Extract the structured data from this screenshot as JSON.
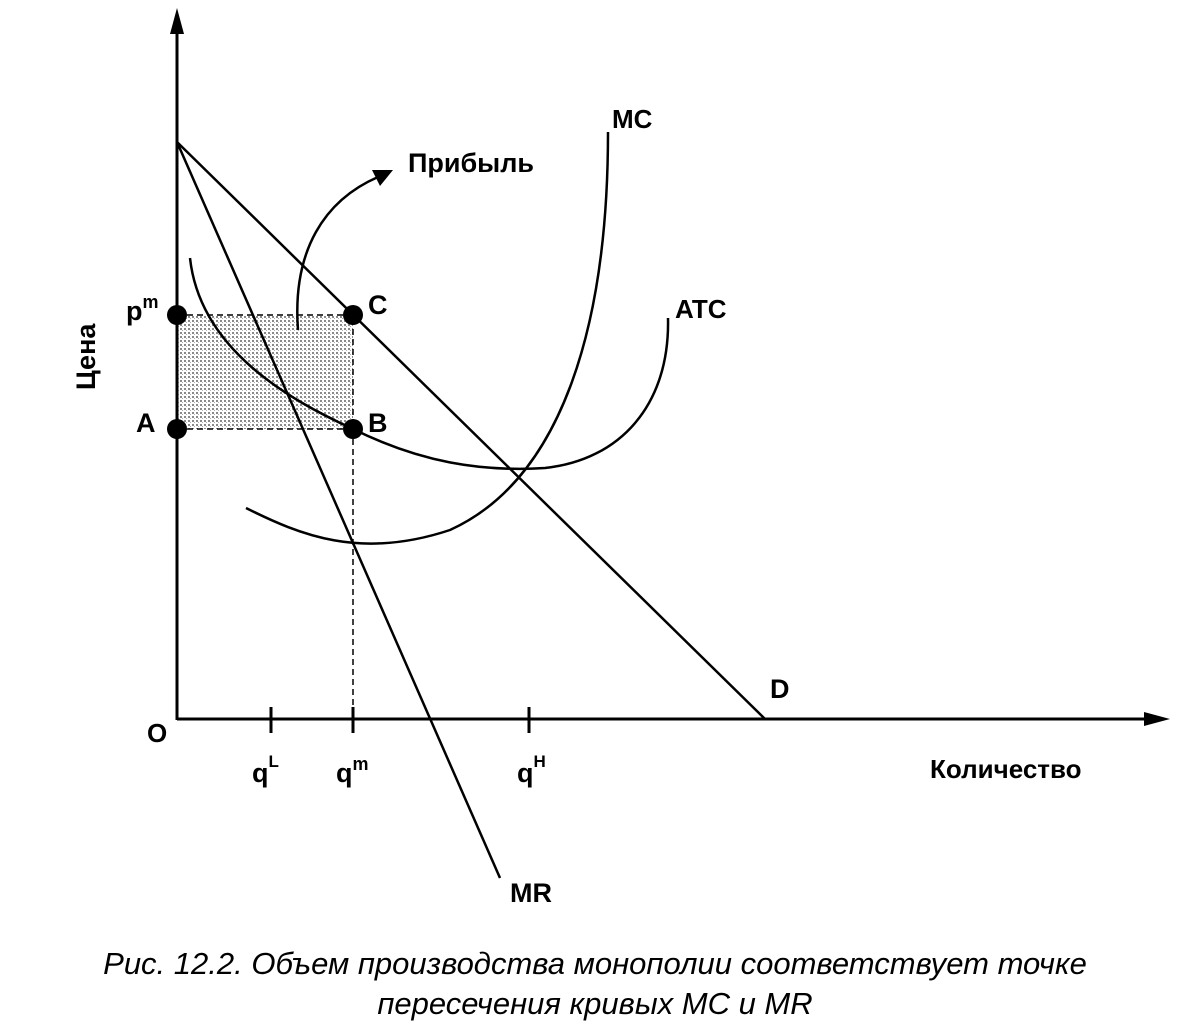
{
  "axes": {
    "y_label": "Цена",
    "x_label": "Количество",
    "origin_label": "O"
  },
  "price_labels": {
    "p_base": "p",
    "p_sup": "m",
    "a": "A"
  },
  "point_labels": {
    "c": "C",
    "b": "B"
  },
  "quantity_labels": {
    "ql_base": "q",
    "ql_sup": "L",
    "qm_base": "q",
    "qm_sup": "m",
    "qh_base": "q",
    "qh_sup": "H"
  },
  "curve_labels": {
    "mc": "MC",
    "atc": "ATC",
    "d": "D",
    "mr": "MR"
  },
  "annotation": {
    "profit": "Прибыль"
  },
  "caption": {
    "line1": "Рис. 12.2. Объем производства монополии соответствует точке",
    "line2": "пересечения кривых MC и MR"
  }
}
